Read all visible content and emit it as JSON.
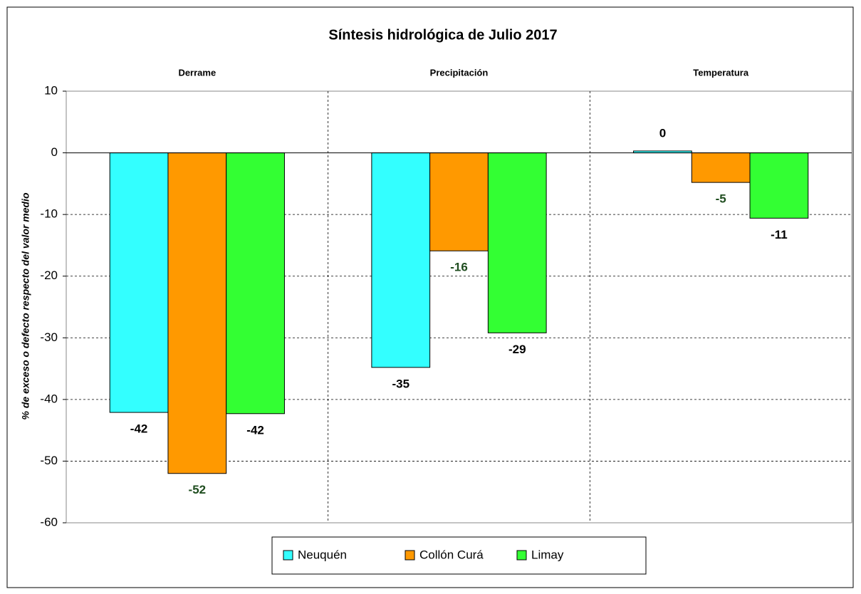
{
  "chart_data": {
    "type": "bar",
    "title": "Síntesis hidrológica de Julio 2017",
    "y_label": "% de exceso o defecto respecto del valor medio",
    "categories": [
      "Derrame",
      "Precipitación",
      "Temperatura"
    ],
    "series": [
      {
        "name": "Neuquén",
        "color": "#33ffff",
        "label_color": "#000000",
        "values": [
          -42.1,
          -34.8,
          0.3
        ],
        "value_labels": [
          "-42",
          "-35",
          "0"
        ]
      },
      {
        "name": "Collón Curá",
        "color": "#ff9900",
        "label_color": "#1f4d1f",
        "values": [
          -52.0,
          -15.9,
          -4.8
        ],
        "value_labels": [
          "-52",
          "-16",
          "-5"
        ]
      },
      {
        "name": "Limay",
        "color": "#33ff33",
        "label_color": "#000000",
        "values": [
          -42.3,
          -29.2,
          -10.6
        ],
        "value_labels": [
          "-42",
          "-29",
          "-11"
        ]
      }
    ],
    "ylim": [
      -60,
      10
    ],
    "yticks": [
      -60,
      -50,
      -40,
      -30,
      -20,
      -10,
      0,
      10
    ],
    "grid": true,
    "legend": "bottom"
  }
}
